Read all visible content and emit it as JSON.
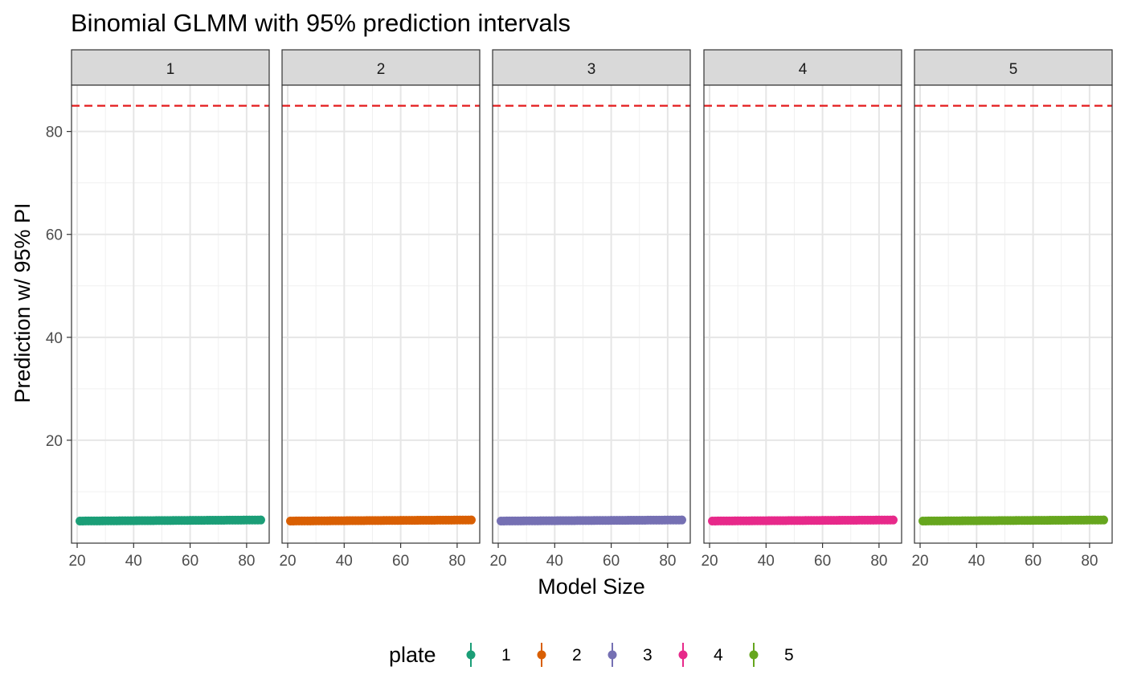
{
  "chart_data": {
    "type": "scatter",
    "title": "Binomial GLMM with 95% prediction intervals",
    "xlabel": "Model Size",
    "ylabel": "Prediction w/ 95% PI",
    "xlim": [
      18,
      88
    ],
    "ylim": [
      0,
      89
    ],
    "x_ticks": [
      20,
      40,
      60,
      80
    ],
    "y_ticks": [
      20,
      40,
      60,
      80
    ],
    "grid": true,
    "reference_line": {
      "y": 85,
      "color": "#e41a1c",
      "style": "dashed"
    },
    "facets": [
      "1",
      "2",
      "3",
      "4",
      "5"
    ],
    "legend": {
      "title": "plate",
      "position": "bottom"
    },
    "series": [
      {
        "name": "1",
        "color": "#1b9e77",
        "x_from": 21,
        "x_to": 85,
        "y_from": 4.3,
        "y_to": 4.5
      },
      {
        "name": "2",
        "color": "#d95f02",
        "x_from": 21,
        "x_to": 85,
        "y_from": 4.3,
        "y_to": 4.5
      },
      {
        "name": "3",
        "color": "#7570b3",
        "x_from": 21,
        "x_to": 85,
        "y_from": 4.3,
        "y_to": 4.5
      },
      {
        "name": "4",
        "color": "#e7298a",
        "x_from": 21,
        "x_to": 85,
        "y_from": 4.3,
        "y_to": 4.5
      },
      {
        "name": "5",
        "color": "#66a61e",
        "x_from": 21,
        "x_to": 85,
        "y_from": 4.3,
        "y_to": 4.5
      }
    ]
  }
}
